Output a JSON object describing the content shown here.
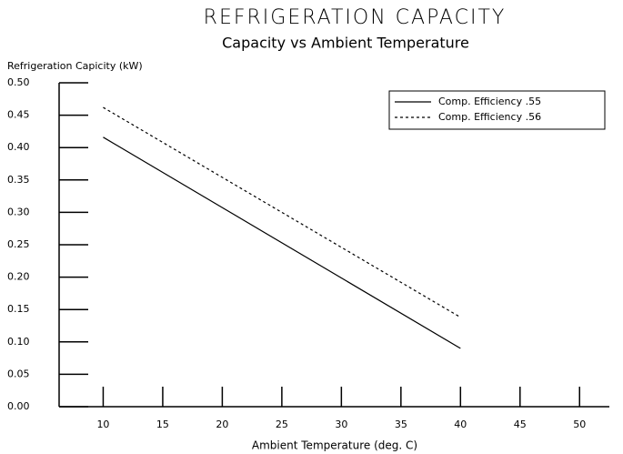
{
  "chart_data": {
    "type": "line",
    "title": "REFRIGERATION CAPACITY",
    "subtitle": "Capacity vs Ambient Temperature",
    "y_label": "Refrigeration Capicity (kW)",
    "x_label": "Ambient Temperature (deg. C)",
    "x": [
      10,
      40
    ],
    "series": [
      {
        "name": "Comp. Efficiency .55",
        "color": "#000000",
        "dash": "solid",
        "values": [
          0.416,
          0.09
        ]
      },
      {
        "name": "Comp. Efficiency .56",
        "color": "#000000",
        "dash": "dashed",
        "values": [
          0.462,
          0.138
        ]
      }
    ],
    "xlim": [
      6.3,
      52.5
    ],
    "xticks": [
      10,
      15,
      20,
      25,
      30,
      35,
      40,
      45,
      50
    ],
    "ylim": [
      0,
      0.5
    ],
    "yticks": [
      {
        "value": 0,
        "label": "0.00"
      },
      {
        "value": 0.05,
        "label": "0.05"
      },
      {
        "value": 0.1,
        "label": "0.10"
      },
      {
        "value": 0.15,
        "label": "0.15"
      },
      {
        "value": 0.2,
        "label": "0.20"
      },
      {
        "value": 0.25,
        "label": "0.25"
      },
      {
        "value": 0.3,
        "label": "0.30"
      },
      {
        "value": 0.35,
        "label": "0.35"
      },
      {
        "value": 0.4,
        "label": "0.40"
      },
      {
        "value": 0.45,
        "label": "0.45"
      },
      {
        "value": 0.5,
        "label": "0.50"
      }
    ],
    "grid": false,
    "legend": "top-right"
  }
}
